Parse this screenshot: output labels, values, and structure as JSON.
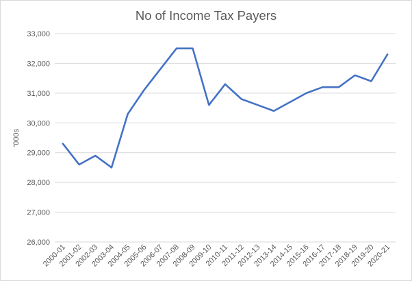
{
  "chart_data": {
    "type": "line",
    "title": "No of Income Tax Payers",
    "xlabel": "",
    "ylabel": "'000s",
    "categories": [
      "2000-01",
      "2001-02",
      "2002-03",
      "2003-04",
      "2004-05",
      "2005-06",
      "2006-07",
      "2007-08",
      "2008-09",
      "2009-10",
      "2010-11",
      "2011-12",
      "2012-13",
      "2013-14",
      "2014-15",
      "2015-16",
      "2016-17",
      "2017-18",
      "2018-19",
      "2019-20",
      "2020-21"
    ],
    "series": [
      {
        "values": [
          29300,
          28600,
          28900,
          28500,
          30300,
          31100,
          31800,
          32500,
          32500,
          30600,
          31300,
          30800,
          30600,
          30400,
          30700,
          31000,
          31200,
          31200,
          31600,
          31400,
          32300
        ]
      }
    ],
    "ylim": [
      26000,
      33000
    ],
    "yticks": [
      26000,
      27000,
      28000,
      29000,
      30000,
      31000,
      32000,
      33000
    ],
    "ytick_labels": [
      "26,000",
      "27,000",
      "28,000",
      "29,000",
      "30,000",
      "31,000",
      "32,000",
      "33,000"
    ],
    "grid": true,
    "legend": "none",
    "colors": {
      "line": "#4472c4",
      "grid": "#d9d9d9",
      "text": "#595959"
    }
  }
}
